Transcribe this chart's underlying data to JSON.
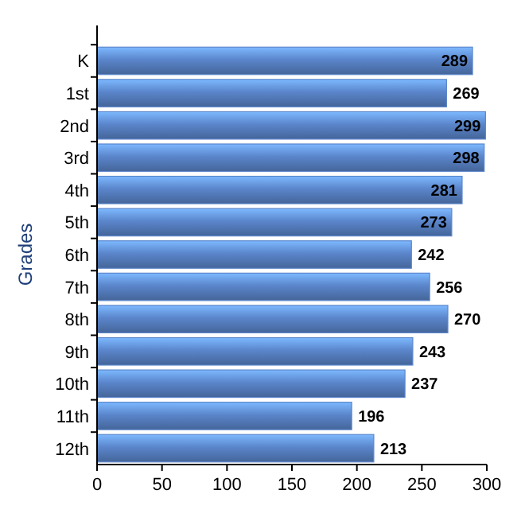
{
  "chart_data": {
    "type": "bar",
    "orientation": "horizontal",
    "ylabel": "Grades",
    "categories": [
      "K",
      "1st",
      "2nd",
      "3rd",
      "4th",
      "5th",
      "6th",
      "7th",
      "8th",
      "9th",
      "10th",
      "11th",
      "12th"
    ],
    "values": [
      289,
      269,
      299,
      298,
      281,
      273,
      242,
      256,
      270,
      243,
      237,
      196,
      213
    ],
    "color": "#5b86cc",
    "xlim": [
      0,
      300
    ],
    "xticks": [
      0,
      50,
      100,
      150,
      200,
      250,
      300
    ],
    "data_labels": true
  }
}
